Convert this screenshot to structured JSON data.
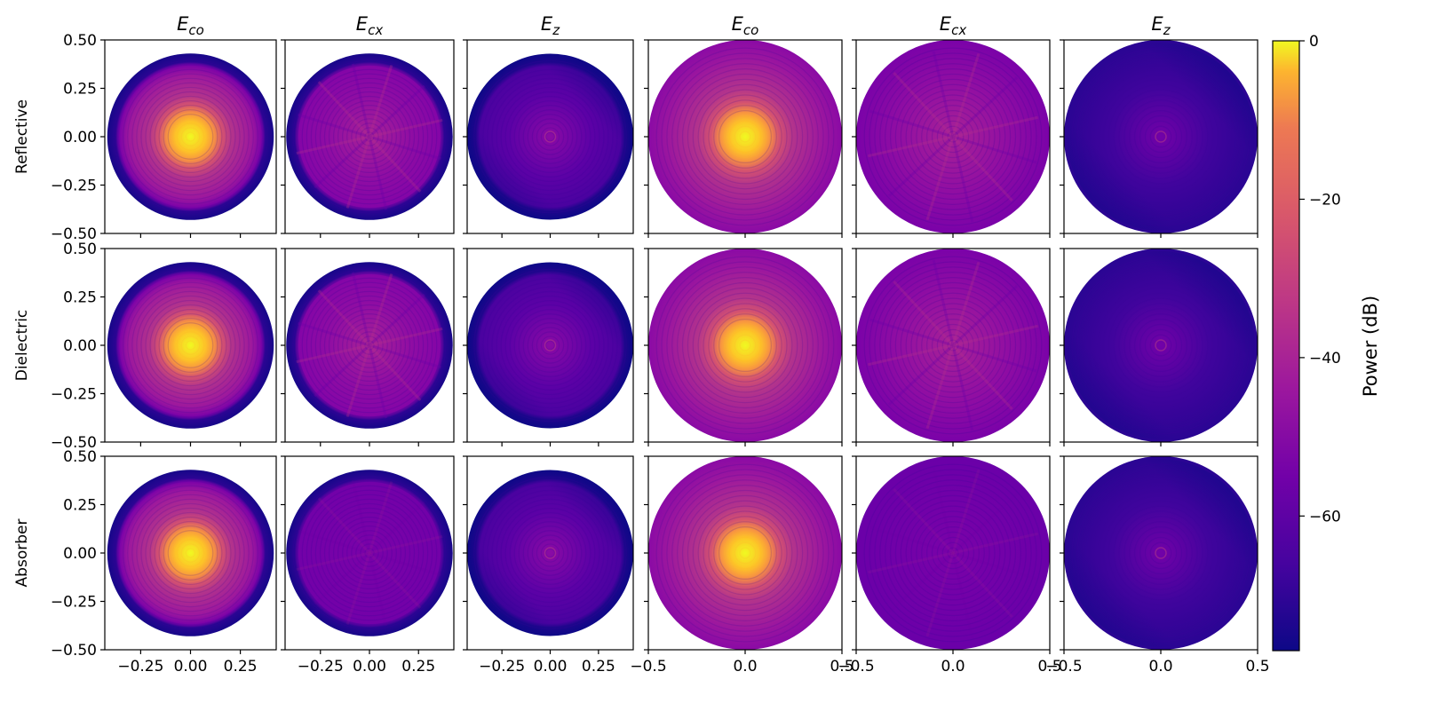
{
  "chart_data": {
    "type": "heatmap",
    "description_free": true,
    "colormap": "plasma",
    "column_titles": [
      {
        "base": "E",
        "sub": "co"
      },
      {
        "base": "E",
        "sub": "cx"
      },
      {
        "base": "E",
        "sub": "z"
      },
      {
        "base": "E",
        "sub": "co"
      },
      {
        "base": "E",
        "sub": "cx"
      },
      {
        "base": "E",
        "sub": "z"
      }
    ],
    "row_labels": [
      "Reflective",
      "Dielectric",
      "Absorber"
    ],
    "y_ticks": [
      "0.50",
      "0.25",
      "0.00",
      "−0.25",
      "−0.50"
    ],
    "y_tick_values": [
      0.5,
      0.25,
      0.0,
      -0.25,
      -0.5
    ],
    "ylim": [
      -0.5,
      0.5
    ],
    "x_ticks_left": [
      "−0.25",
      "0.00",
      "0.25"
    ],
    "x_tick_values_left": [
      -0.25,
      0.0,
      0.25
    ],
    "xlim_left": [
      -0.43,
      0.43
    ],
    "x_ticks_right": [
      "−0.5",
      "0.0",
      "0.5"
    ],
    "x_tick_values_right": [
      -0.5,
      0.0,
      0.5
    ],
    "xlim_right": [
      -0.5,
      0.5
    ],
    "aperture_radius": [
      0.43,
      0.5
    ],
    "colorbar": {
      "label": "Power (dB)",
      "ticks": [
        "0",
        "−20",
        "−40",
        "−60"
      ],
      "tick_values": [
        0,
        -20,
        -40,
        -60
      ],
      "range": [
        -77,
        0
      ]
    },
    "panels": [
      {
        "row": 0,
        "col": 0,
        "component": "co",
        "peak_db": 0
      },
      {
        "row": 0,
        "col": 1,
        "component": "cx"
      },
      {
        "row": 0,
        "col": 2,
        "component": "z"
      },
      {
        "row": 0,
        "col": 3,
        "component": "co",
        "peak_db": 0
      },
      {
        "row": 0,
        "col": 4,
        "component": "cx"
      },
      {
        "row": 0,
        "col": 5,
        "component": "z"
      },
      {
        "row": 1,
        "col": 0,
        "component": "co",
        "peak_db": 0
      },
      {
        "row": 1,
        "col": 1,
        "component": "cx"
      },
      {
        "row": 1,
        "col": 2,
        "component": "z"
      },
      {
        "row": 1,
        "col": 3,
        "component": "co",
        "peak_db": 0
      },
      {
        "row": 1,
        "col": 4,
        "component": "cx"
      },
      {
        "row": 1,
        "col": 5,
        "component": "z"
      },
      {
        "row": 2,
        "col": 0,
        "component": "co",
        "peak_db": 0
      },
      {
        "row": 2,
        "col": 1,
        "component": "cx"
      },
      {
        "row": 2,
        "col": 2,
        "component": "z"
      },
      {
        "row": 2,
        "col": 3,
        "component": "co",
        "peak_db": 0
      },
      {
        "row": 2,
        "col": 4,
        "component": "cx"
      },
      {
        "row": 2,
        "col": 5,
        "component": "z"
      }
    ]
  }
}
